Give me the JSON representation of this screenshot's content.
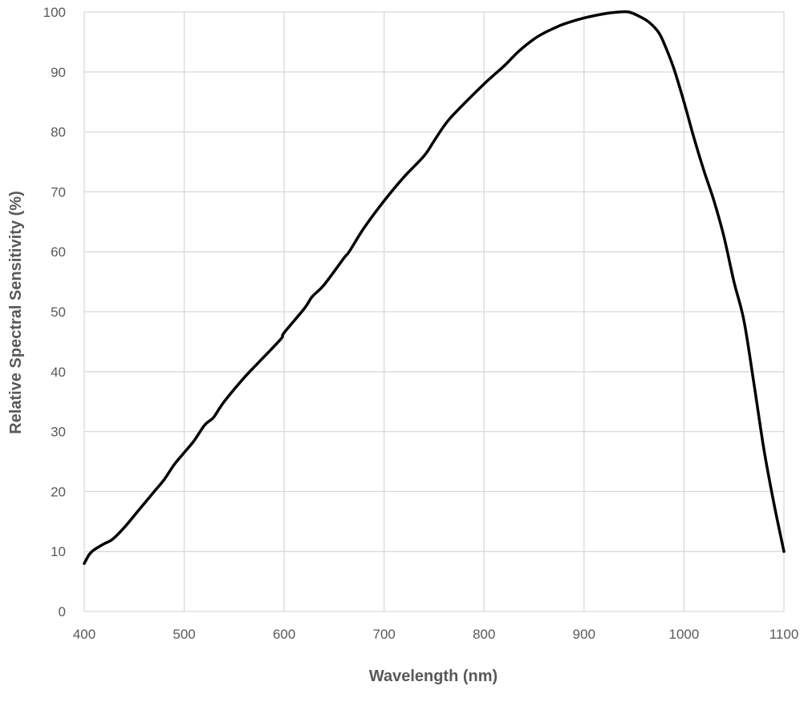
{
  "chart_data": {
    "type": "line",
    "title": "",
    "xlabel": "Wavelength (nm)",
    "ylabel": "Relative Spectral Sensitivity (%)",
    "xlim": [
      400,
      1100
    ],
    "ylim": [
      0,
      100
    ],
    "x_ticks": [
      400,
      500,
      600,
      700,
      800,
      900,
      1000,
      1100
    ],
    "y_ticks": [
      0,
      10,
      20,
      30,
      40,
      50,
      60,
      70,
      80,
      90,
      100
    ],
    "grid": true,
    "legend": "none",
    "line_color": "#000000",
    "grid_color": "#d9d9d9",
    "series": [
      {
        "x": [
          400,
          405,
          410,
          420,
          428,
          440,
          455,
          470,
          480,
          490,
          500,
          510,
          520,
          527,
          530,
          540,
          560,
          580,
          597,
          600,
          620,
          628,
          640,
          660,
          665,
          680,
          700,
          720,
          740,
          750,
          760,
          770,
          800,
          820,
          835,
          850,
          860,
          870,
          880,
          900,
          920,
          935,
          945,
          955,
          965,
          975,
          982,
          990,
          1000,
          1010,
          1020,
          1030,
          1040,
          1050,
          1060,
          1070,
          1080,
          1090,
          1100
        ],
        "y": [
          8,
          9.5,
          10.3,
          11.3,
          12,
          14,
          17,
          20,
          22,
          24.5,
          26.5,
          28.5,
          31,
          32,
          32.5,
          35,
          39,
          42.5,
          45.5,
          46.5,
          50.5,
          52.5,
          54.5,
          59,
          60,
          64,
          68.5,
          72.5,
          76,
          78.5,
          81,
          83,
          88,
          91,
          93.5,
          95.5,
          96.5,
          97.3,
          98,
          99,
          99.7,
          100,
          100,
          99.3,
          98.3,
          96.5,
          94,
          90.5,
          85,
          79,
          73.5,
          68.5,
          62.5,
          55,
          48.5,
          38,
          27,
          18,
          10
        ]
      }
    ]
  }
}
